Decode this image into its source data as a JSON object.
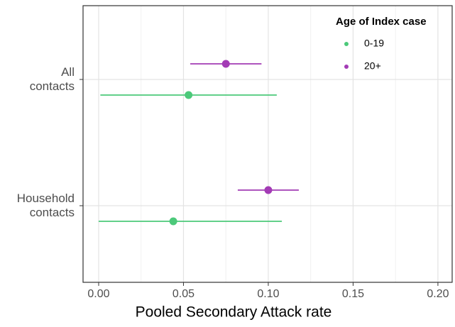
{
  "chart_data": {
    "type": "forest",
    "xlabel": "Pooled Secondary Attack rate",
    "categories": [
      "All\ncontacts",
      "Household\ncontacts"
    ],
    "series": [
      {
        "name": "0-19",
        "color": "#4cc97a",
        "values": [
          0.053,
          0.044
        ],
        "lower": [
          0.001,
          0.0
        ],
        "upper": [
          0.105,
          0.108
        ]
      },
      {
        "name": "20+",
        "color": "#a33bb5",
        "values": [
          0.075,
          0.1
        ],
        "lower": [
          0.054,
          0.082
        ],
        "upper": [
          0.096,
          0.118
        ]
      }
    ],
    "xlim": [
      -0.0092,
      0.2084
    ],
    "xticks": [
      {
        "value": 0,
        "label": "0.00"
      },
      0.05,
      {
        "value": 0.1,
        "label": "0.10"
      },
      0.15,
      {
        "value": 0.2,
        "label": "0.20"
      }
    ],
    "grid": true,
    "legend_title": "Age of Index case",
    "legend_position": "top-right"
  }
}
